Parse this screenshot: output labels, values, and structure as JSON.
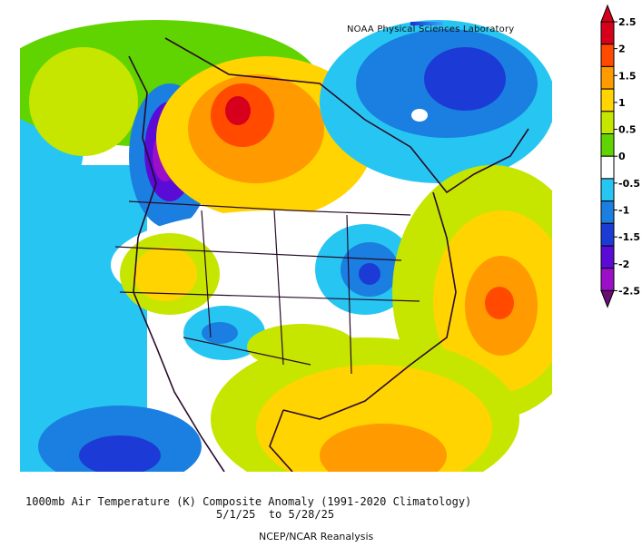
{
  "map": {
    "credit": "NOAA Physical Sciences Laboratory"
  },
  "colorbar": {
    "labels": [
      "2.5",
      "2",
      "1.5",
      "1",
      "0.5",
      "0",
      "-0.5",
      "-1",
      "-1.5",
      "-2",
      "-2.5"
    ],
    "colors": [
      "#d6001d",
      "#ff4a00",
      "#ff9a00",
      "#ffd400",
      "#c6e600",
      "#5fd400",
      "#ffffff",
      "#27c6f2",
      "#1a7fe0",
      "#1c3bd6",
      "#5a0bd6",
      "#9b0fc9",
      "#c70fb8",
      "#6a0d75"
    ]
  },
  "captions": {
    "line1": "1000mb Air Temperature (K) Composite Anomaly (1991-2020 Climatology)",
    "line2": "5/1/25  to 5/28/25",
    "line3": "NCEP/NCAR Reanalysis"
  }
}
